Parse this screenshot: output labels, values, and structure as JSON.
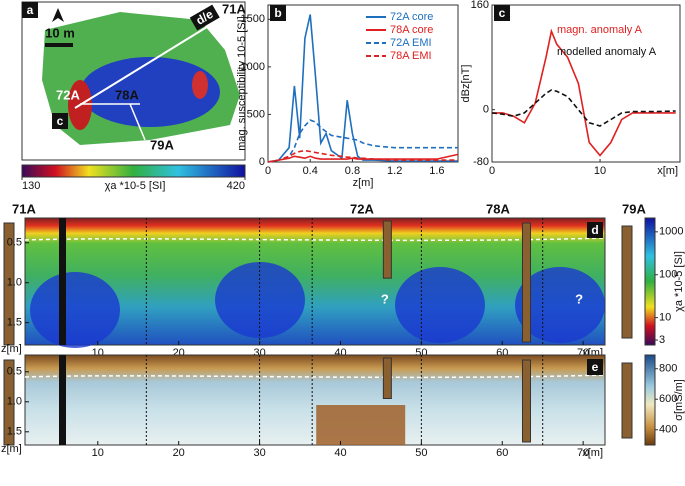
{
  "panel_a": {
    "label": "a",
    "scale_bar": "10 m",
    "points": [
      "71A",
      "72A",
      "78A",
      "79A"
    ],
    "tags": [
      "d/e",
      "c"
    ],
    "colorbar": {
      "ticks": [
        130,
        420
      ],
      "label": "χa *10-5 [SI]"
    }
  },
  "chart_data": [
    {
      "type": "line",
      "label": "b",
      "ylabel": "mag. susceptibility 10-5 [SI]",
      "xlabel": "z[m]",
      "x": [
        0,
        0.1,
        0.2,
        0.25,
        0.3,
        0.35,
        0.4,
        0.45,
        0.5,
        0.55,
        0.6,
        0.7,
        0.75,
        0.8,
        0.85,
        0.9,
        1.0,
        1.2,
        1.4,
        1.6,
        1.8
      ],
      "xlim": [
        0,
        1.8
      ],
      "xticks": [
        0,
        0.4,
        0.8,
        1.2,
        1.6
      ],
      "ylim": [
        0,
        1650
      ],
      "yticks": [
        0,
        500,
        1000,
        1500
      ],
      "legend": "top-right",
      "series": [
        {
          "name": "72A core",
          "color": "#1f6fbf",
          "dash": false,
          "values": [
            0,
            20,
            150,
            800,
            250,
            1300,
            1550,
            900,
            200,
            300,
            120,
            40,
            650,
            300,
            60,
            20,
            20,
            10,
            10,
            10,
            10
          ]
        },
        {
          "name": "78A core",
          "color": "#e02020",
          "dash": false,
          "values": [
            0,
            20,
            40,
            60,
            50,
            40,
            60,
            40,
            30,
            30,
            30,
            30,
            30,
            40,
            30,
            30,
            30,
            30,
            30,
            30,
            80
          ]
        },
        {
          "name": "72A EMI",
          "color": "#1f6fbf",
          "dash": true,
          "values": [
            0,
            20,
            60,
            150,
            300,
            380,
            440,
            420,
            360,
            320,
            280,
            260,
            250,
            240,
            230,
            200,
            170,
            150,
            150,
            150,
            150
          ]
        },
        {
          "name": "78A EMI",
          "color": "#e02020",
          "dash": true,
          "values": [
            0,
            20,
            60,
            90,
            110,
            120,
            110,
            100,
            90,
            80,
            70,
            60,
            50,
            50,
            40,
            40,
            30,
            20,
            20,
            20,
            20
          ]
        }
      ]
    },
    {
      "type": "line",
      "label": "c",
      "ylabel": "dBz[nT]",
      "xlabel": "x[m]",
      "x": [
        0,
        1,
        2,
        3,
        4,
        5,
        5.5,
        6,
        7,
        8,
        9,
        10,
        11,
        12,
        13,
        15,
        17
      ],
      "xlim": [
        0,
        17.4
      ],
      "xticks": [
        0,
        10
      ],
      "ylim": [
        -80,
        160
      ],
      "yticks": [
        -80,
        0,
        160
      ],
      "annotations": [
        "magn. anomaly A",
        "modelled anomaly A"
      ],
      "series": [
        {
          "name": "magn. anomaly A",
          "color": "#e02020",
          "dash": false,
          "values": [
            -5,
            -5,
            -10,
            -20,
            10,
            80,
            120,
            100,
            80,
            40,
            -50,
            -70,
            -50,
            -15,
            -5,
            -5,
            -5
          ]
        },
        {
          "name": "modelled anomaly A",
          "color": "#111111",
          "dash": true,
          "values": [
            -5,
            -7,
            -10,
            -5,
            10,
            25,
            30,
            28,
            20,
            0,
            -20,
            -25,
            -15,
            -5,
            -3,
            -3,
            -2
          ]
        }
      ]
    }
  ],
  "profiles": {
    "top_labels": [
      "71A",
      "72A",
      "78A",
      "79A"
    ],
    "xlim": [
      1,
      72.7
    ],
    "xticks": [
      10,
      20,
      30,
      40,
      50,
      60,
      70
    ],
    "xlabel": "x[m]",
    "ylabel": "z[m]",
    "panels": [
      {
        "label": "d",
        "ylim": [
          0.19,
          1.78
        ],
        "yticks": [
          0.5,
          {
            "value": 1,
            "label": "1.0"
          },
          1.5
        ],
        "annotations": [
          "?",
          "?"
        ],
        "colorbar": {
          "label": "χa *10-5 [SI]",
          "log": true,
          "clim": [
            2.3,
            2100
          ],
          "ticks": [
            3,
            10,
            100,
            1000
          ]
        }
      },
      {
        "label": "e",
        "ylim": [
          0.22,
          1.72
        ],
        "yticks": [
          0.5,
          {
            "value": 1,
            "label": "1.0"
          },
          1.5
        ],
        "annotations": [],
        "colorbar": {
          "label": "σ[mS/m]",
          "log": false,
          "clim": [
            300,
            890
          ],
          "ticks": [
            400,
            600,
            800
          ]
        }
      }
    ]
  }
}
